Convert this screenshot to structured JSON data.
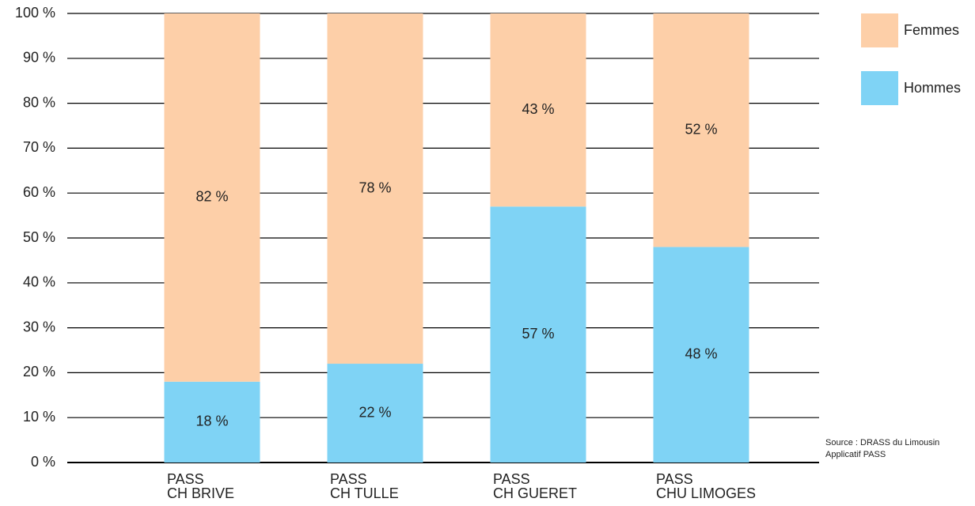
{
  "chart_data": {
    "type": "stacked-bar",
    "categories": [
      "PASS\nCH BRIVE",
      "PASS\nCH TULLE",
      "PASS\nCH GUERET",
      "PASS\nCHU LIMOGES"
    ],
    "series": [
      {
        "name": "Hommes",
        "color": "#7fd3f5",
        "values": [
          18,
          22,
          57,
          48
        ],
        "value_labels": [
          "18 %",
          "22 %",
          "57 %",
          "48 %"
        ]
      },
      {
        "name": "Femmes",
        "color": "#fdcfa8",
        "values": [
          82,
          78,
          43,
          52
        ],
        "value_labels": [
          "82 %",
          "78 %",
          "43 %",
          "52 %"
        ]
      }
    ],
    "ylim": [
      0,
      100
    ],
    "yticks": [
      {
        "value": 0,
        "label": "0 %"
      },
      {
        "value": 10,
        "label": "10 %"
      },
      {
        "value": 20,
        "label": "20 %"
      },
      {
        "value": 30,
        "label": "30 %"
      },
      {
        "value": 40,
        "label": "40 %"
      },
      {
        "value": 50,
        "label": "50 %"
      },
      {
        "value": 60,
        "label": "60 %"
      },
      {
        "value": 70,
        "label": "70 %"
      },
      {
        "value": 80,
        "label": "80 %"
      },
      {
        "value": 90,
        "label": "90 %"
      },
      {
        "value": 100,
        "label": "100 %"
      }
    ],
    "grid": true,
    "legend": "top-right",
    "source": [
      "Source : DRASS du Limousin",
      "Applicatif PASS"
    ]
  }
}
